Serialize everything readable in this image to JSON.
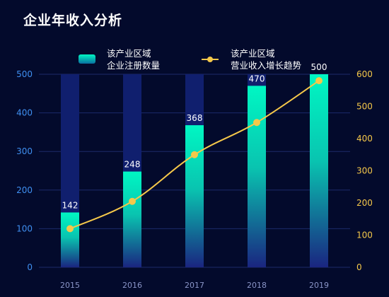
{
  "title": "企业年收入分析",
  "colors": {
    "background": "#030a2c",
    "bar_top": "#00f0c0",
    "bar_bottom": "#1a2a8a",
    "bar_track": "#101f6e",
    "line": "#f5c84a",
    "grid": "#1c2a6a",
    "left_axis_text": "#3f8ff0",
    "right_axis_text": "#f5c84a",
    "x_axis_text": "#8a95c8"
  },
  "legend": {
    "bar_label_line1": "该产业区域",
    "bar_label_line2": "企业注册数量",
    "line_label_line1": "该产业区域",
    "line_label_line2": "营业收入增长趋势"
  },
  "chart_data": {
    "type": "bar",
    "categories": [
      "2015",
      "2016",
      "2017",
      "2018",
      "2019"
    ],
    "series": [
      {
        "name": "该产业区域企业注册数量",
        "type": "bar",
        "axis": "left",
        "values": [
          142,
          248,
          368,
          470,
          500
        ],
        "data_labels": [
          "142",
          "248",
          "368",
          "470",
          "500"
        ]
      },
      {
        "name": "该产业区域营业收入增长趋势",
        "type": "line",
        "axis": "right",
        "smooth": true,
        "values": [
          120,
          205,
          350,
          450,
          580
        ]
      }
    ],
    "y_left": {
      "ylim": [
        0,
        500
      ],
      "ticks": [
        "0",
        "100",
        "200",
        "300",
        "400",
        "500"
      ]
    },
    "y_right": {
      "ylim": [
        0,
        600
      ],
      "ticks": [
        "0",
        "100",
        "200",
        "300",
        "400",
        "500",
        "600"
      ]
    },
    "grid": true,
    "legend_position": "top-center"
  }
}
